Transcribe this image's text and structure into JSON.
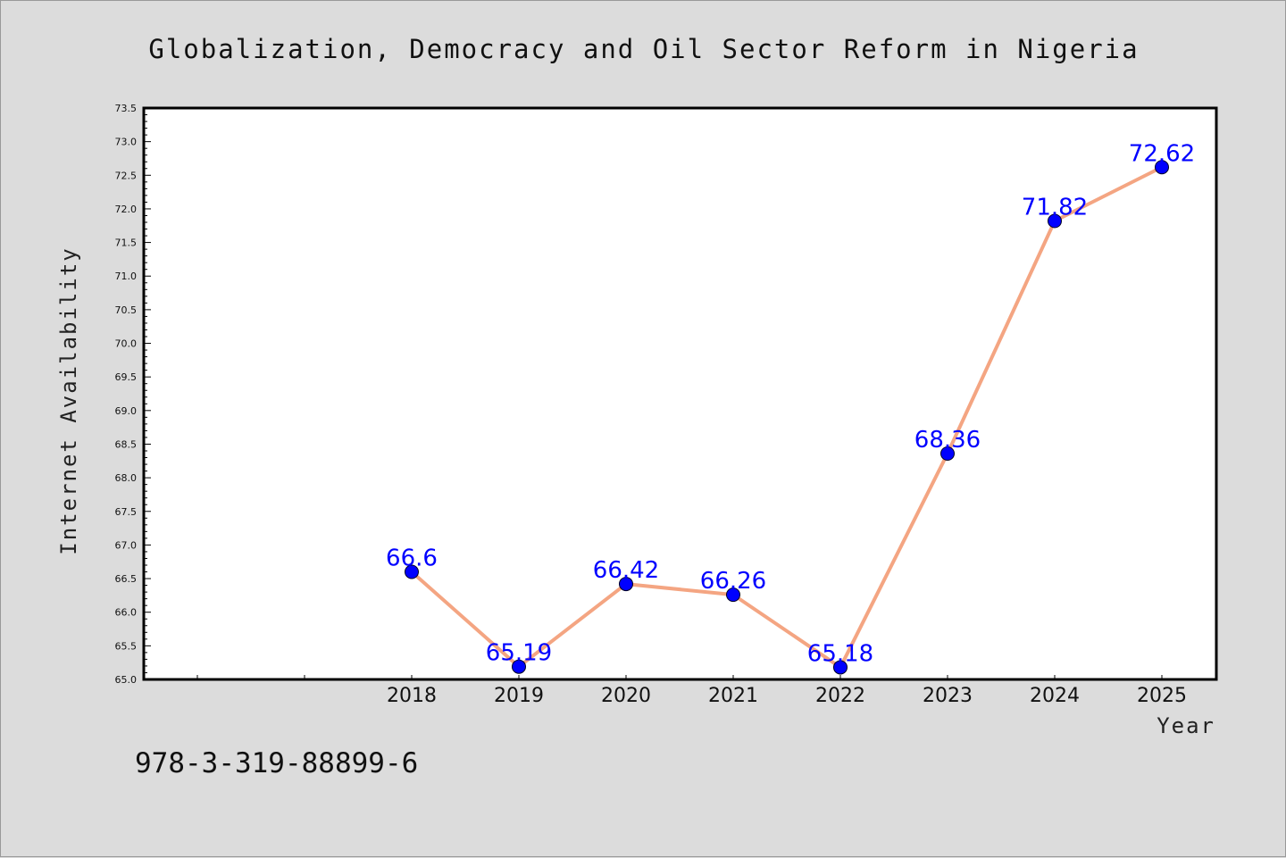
{
  "chart_data": {
    "type": "line",
    "title": "Globalization, Democracy and Oil Sector Reform in Nigeria",
    "xlabel": "Year",
    "ylabel": "Internet Availability",
    "categories": [
      "2018",
      "2019",
      "2020",
      "2021",
      "2022",
      "2023",
      "2024",
      "2025"
    ],
    "series": [
      {
        "values": [
          66.6,
          65.19,
          66.42,
          66.26,
          65.18,
          68.36,
          71.82,
          72.62
        ],
        "labels": [
          "66.6",
          "65.19",
          "66.42",
          "66.26",
          "65.18",
          "68.36",
          "71.82",
          "72.62"
        ],
        "line_color": "#f4a582",
        "marker_color": "#0000ff"
      }
    ],
    "ylim": [
      65.0,
      73.5
    ],
    "yticks": [
      "65.0",
      "65.5",
      "66.0",
      "66.5",
      "67.0",
      "67.5",
      "68.0",
      "68.5",
      "69.0",
      "69.5",
      "70.0",
      "70.5",
      "71.0",
      "71.5",
      "72.0",
      "72.5",
      "73.0",
      "73.5"
    ],
    "grid": false,
    "label_color": "#0000ff"
  },
  "footer": {
    "isbn": "978-3-319-88899-6"
  }
}
